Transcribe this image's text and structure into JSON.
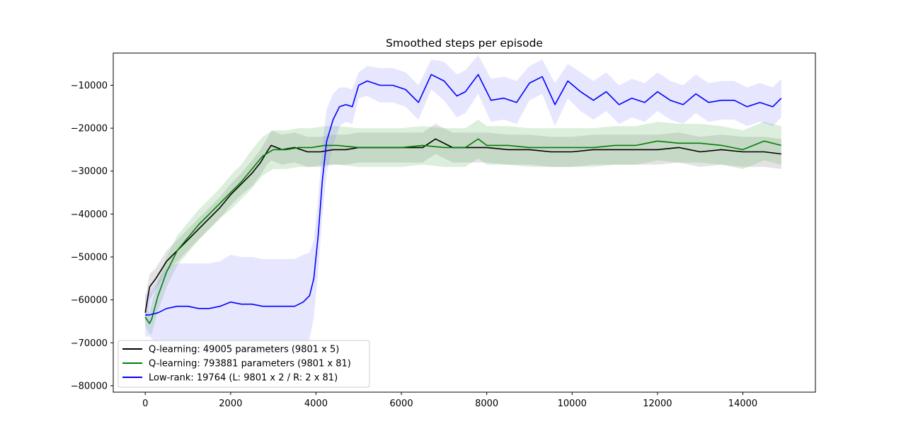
{
  "chart_data": {
    "type": "line",
    "title": "Smoothed steps per episode",
    "xlabel": "",
    "ylabel": "",
    "xlim": [
      -750,
      15700
    ],
    "ylim": [
      -81500,
      -2500
    ],
    "xticks": [
      0,
      2000,
      4000,
      6000,
      8000,
      10000,
      12000,
      14000
    ],
    "xtick_labels": [
      "0",
      "2000",
      "4000",
      "6000",
      "8000",
      "10000",
      "12000",
      "14000"
    ],
    "yticks": [
      -80000,
      -70000,
      -60000,
      -50000,
      -40000,
      -30000,
      -20000,
      -10000
    ],
    "ytick_labels": [
      "−80000",
      "−70000",
      "−60000",
      "−50000",
      "−40000",
      "−30000",
      "−20000",
      "−10000"
    ],
    "grid": false,
    "legend_position": "lower-left",
    "series": [
      {
        "name": "Q-learning: 49005 parameters (9801 x 5)",
        "color": "#000000",
        "band_color": "#808080",
        "x": [
          0,
          100,
          250,
          500,
          750,
          1000,
          1250,
          1500,
          1750,
          2000,
          2250,
          2500,
          2700,
          2850,
          2950,
          3200,
          3500,
          3800,
          4100,
          4400,
          4700,
          5000,
          5500,
          6000,
          6500,
          6800,
          7200,
          7600,
          8000,
          8500,
          9000,
          9500,
          10000,
          10500,
          11000,
          11500,
          12000,
          12500,
          13000,
          13500,
          14000,
          14500,
          14900
        ],
        "y": [
          -63000,
          -57000,
          -55000,
          -51000,
          -48500,
          -46000,
          -43500,
          -41000,
          -38500,
          -35500,
          -33000,
          -30500,
          -28000,
          -25500,
          -24000,
          -25000,
          -24500,
          -25500,
          -25500,
          -25000,
          -25000,
          -24500,
          -24500,
          -24500,
          -24500,
          -22500,
          -24500,
          -24500,
          -24500,
          -25000,
          -25000,
          -25500,
          -25500,
          -25000,
          -25000,
          -25000,
          -25000,
          -24500,
          -25500,
          -25000,
          -25500,
          -25500,
          -26000
        ],
        "band": [
          3000,
          3000,
          2500,
          2500,
          2500,
          2500,
          2500,
          2500,
          2500,
          2500,
          2500,
          3000,
          3000,
          3000,
          3500,
          3500,
          3500,
          3500,
          3500,
          3500,
          3500,
          3500,
          3500,
          3500,
          3500,
          3500,
          3500,
          3500,
          3500,
          3500,
          3500,
          3500,
          3500,
          3500,
          3500,
          3500,
          3500,
          3500,
          3500,
          3500,
          3500,
          3500,
          3500
        ]
      },
      {
        "name": "Q-learning: 793881 parameters (9801 x 81)",
        "color": "#008000",
        "band_color": "#5fb35f",
        "x": [
          0,
          100,
          150,
          300,
          500,
          750,
          1000,
          1250,
          1500,
          1750,
          2000,
          2250,
          2500,
          2750,
          3000,
          3300,
          3600,
          3900,
          4200,
          4500,
          5000,
          5500,
          6000,
          6500,
          7000,
          7500,
          7800,
          8000,
          8500,
          9000,
          9500,
          10000,
          10500,
          11000,
          11500,
          12000,
          12500,
          13000,
          13500,
          14000,
          14500,
          14900
        ],
        "y": [
          -64000,
          -65500,
          -64500,
          -59000,
          -53500,
          -48500,
          -45500,
          -42500,
          -40000,
          -37500,
          -35000,
          -32500,
          -29500,
          -26500,
          -25000,
          -25000,
          -24500,
          -24500,
          -24000,
          -24000,
          -24500,
          -24500,
          -24500,
          -24000,
          -24500,
          -24500,
          -22500,
          -24000,
          -24000,
          -24500,
          -24500,
          -24500,
          -24500,
          -24000,
          -24000,
          -23000,
          -23500,
          -23500,
          -24000,
          -25000,
          -23000,
          -24000
        ],
        "band": [
          2000,
          2500,
          3500,
          3500,
          3500,
          3500,
          3500,
          3500,
          3500,
          3500,
          4000,
          4000,
          4500,
          4500,
          4500,
          4500,
          4500,
          4500,
          4500,
          4500,
          4500,
          4500,
          4500,
          4500,
          4500,
          4500,
          4500,
          4500,
          4500,
          4500,
          4500,
          4500,
          4500,
          4500,
          4500,
          4500,
          4500,
          4500,
          4500,
          4500,
          4500,
          4500
        ]
      },
      {
        "name": "Low-rank: 19764 (L: 9801 x 2 / R: 2 x 81)",
        "color": "#0000ff",
        "band_color": "#8c8cff",
        "x": [
          0,
          100,
          300,
          500,
          750,
          1000,
          1250,
          1500,
          1750,
          2000,
          2250,
          2500,
          2750,
          3000,
          3250,
          3500,
          3700,
          3850,
          3950,
          4050,
          4150,
          4250,
          4400,
          4550,
          4700,
          4850,
          5000,
          5200,
          5500,
          5800,
          6100,
          6400,
          6700,
          7000,
          7300,
          7500,
          7800,
          8100,
          8400,
          8700,
          9000,
          9300,
          9600,
          9900,
          10200,
          10500,
          10800,
          11100,
          11400,
          11700,
          12000,
          12300,
          12600,
          12900,
          13200,
          13500,
          13800,
          14100,
          14400,
          14700,
          14900
        ],
        "y": [
          -63500,
          -63500,
          -63000,
          -62000,
          -61500,
          -61500,
          -62000,
          -62000,
          -61500,
          -60500,
          -61000,
          -61000,
          -61500,
          -61500,
          -61500,
          -61500,
          -60500,
          -59000,
          -55000,
          -45000,
          -32000,
          -23000,
          -18000,
          -15000,
          -14500,
          -15000,
          -10000,
          -9000,
          -10000,
          -10000,
          -11000,
          -14000,
          -7500,
          -9000,
          -12500,
          -11500,
          -7500,
          -13500,
          -13000,
          -14000,
          -9500,
          -8000,
          -14500,
          -9000,
          -11500,
          -13500,
          -11500,
          -14500,
          -13000,
          -14000,
          -11500,
          -13500,
          -14500,
          -12000,
          -14000,
          -13500,
          -13500,
          -15000,
          -14000,
          -15000,
          -13000
        ],
        "band": [
          5000,
          5000,
          7500,
          9500,
          10000,
          10000,
          10500,
          10500,
          10500,
          11000,
          11000,
          11000,
          11000,
          11000,
          11000,
          11000,
          11000,
          10000,
          9000,
          8500,
          8000,
          7500,
          6000,
          4500,
          4000,
          4000,
          3000,
          3500,
          4000,
          4000,
          4000,
          4000,
          3500,
          4500,
          5000,
          5000,
          4500,
          5000,
          5000,
          5000,
          4000,
          4000,
          5000,
          4000,
          4500,
          4500,
          4500,
          4500,
          4500,
          4500,
          4500,
          4500,
          4500,
          4500,
          4500,
          4500,
          4500,
          4500,
          4500,
          4500,
          4500
        ]
      }
    ]
  }
}
